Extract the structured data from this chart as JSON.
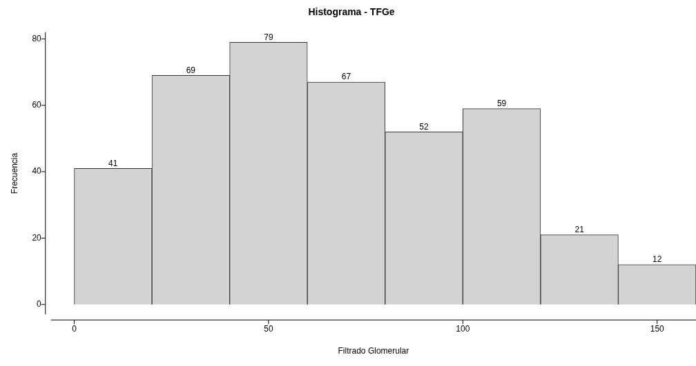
{
  "chart_data": {
    "type": "histogram",
    "title": "Histograma - TFGe",
    "xlabel": "Filtrado Glomerular",
    "ylabel": "Frecuencia",
    "bins": [
      0,
      20,
      40,
      60,
      80,
      100,
      120,
      140,
      160
    ],
    "values": [
      41,
      69,
      79,
      67,
      52,
      59,
      21,
      12
    ],
    "color": "#d3d3d3",
    "xlim": [
      -6,
      160
    ],
    "xticks": [
      0,
      50,
      100,
      150
    ],
    "ylim": [
      -3,
      82
    ],
    "yticks": [
      0,
      20,
      40,
      60,
      80
    ],
    "data_labels": true,
    "grid": false,
    "legend": false
  }
}
